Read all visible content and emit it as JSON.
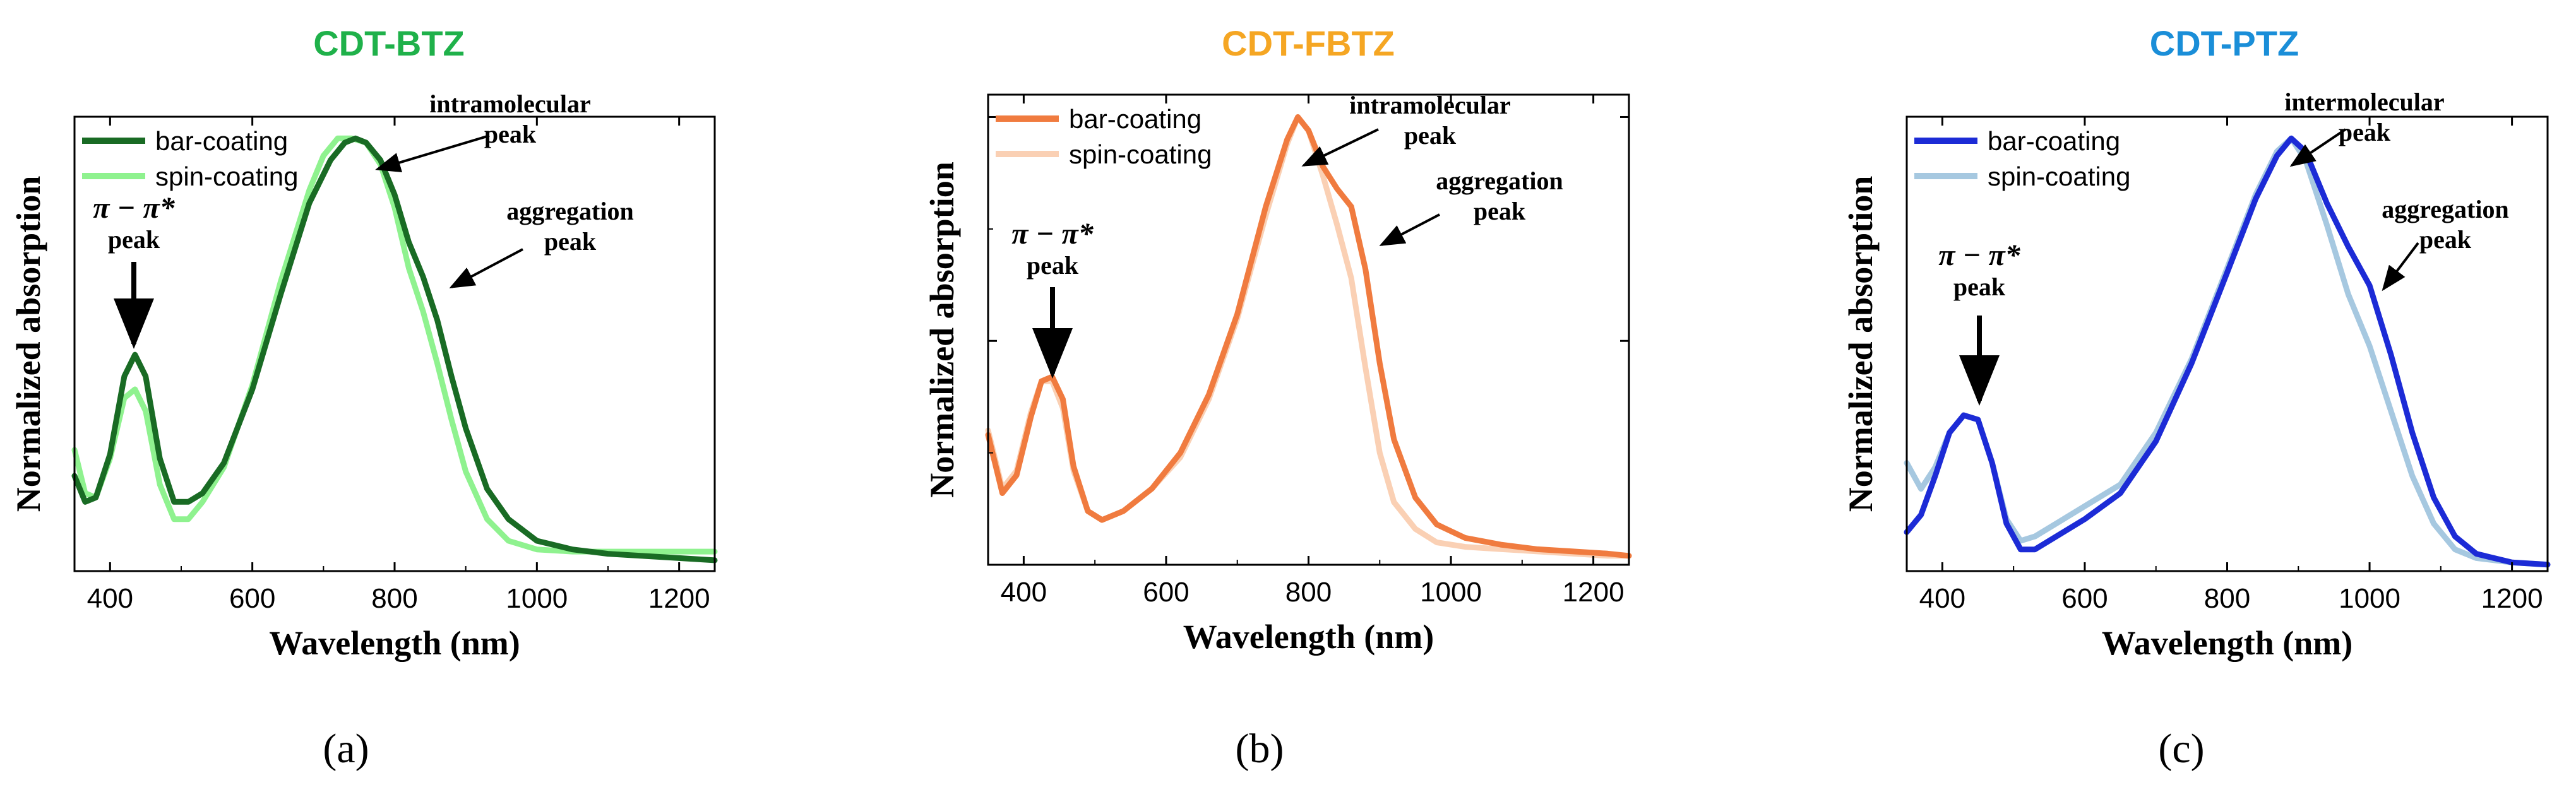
{
  "chart_data": [
    {
      "type": "line",
      "title": "CDT-BTZ",
      "title_color": "#1fb14a",
      "xlabel": "Wavelength (nm)",
      "ylabel": "Normalized absorption",
      "xlim": [
        350,
        1250
      ],
      "ylim": [
        0,
        1.05
      ],
      "xticks": [
        400,
        600,
        800,
        1000,
        1200
      ],
      "show_y_tick_marks": false,
      "legend": "top-left",
      "series": [
        {
          "name": "bar-coating",
          "color": "#196b24",
          "x": [
            350,
            365,
            380,
            400,
            420,
            435,
            450,
            470,
            490,
            510,
            530,
            560,
            600,
            640,
            680,
            710,
            730,
            745,
            760,
            780,
            800,
            820,
            840,
            860,
            880,
            900,
            930,
            960,
            1000,
            1050,
            1100,
            1150,
            1200,
            1250
          ],
          "y": [
            0.22,
            0.16,
            0.17,
            0.27,
            0.45,
            0.5,
            0.45,
            0.26,
            0.16,
            0.16,
            0.18,
            0.25,
            0.42,
            0.64,
            0.85,
            0.95,
            0.99,
            1.0,
            0.99,
            0.95,
            0.87,
            0.76,
            0.68,
            0.58,
            0.45,
            0.33,
            0.19,
            0.12,
            0.07,
            0.05,
            0.04,
            0.035,
            0.03,
            0.025
          ]
        },
        {
          "name": "spin-coating",
          "color": "#8ff28f",
          "x": [
            350,
            365,
            380,
            400,
            420,
            435,
            450,
            470,
            490,
            510,
            530,
            560,
            600,
            640,
            680,
            700,
            720,
            740,
            760,
            780,
            800,
            820,
            840,
            860,
            880,
            900,
            930,
            960,
            1000,
            1050,
            1100,
            1150,
            1200,
            1250
          ],
          "y": [
            0.28,
            0.18,
            0.17,
            0.26,
            0.4,
            0.42,
            0.37,
            0.2,
            0.12,
            0.12,
            0.16,
            0.24,
            0.43,
            0.67,
            0.88,
            0.96,
            1.0,
            1.0,
            0.99,
            0.94,
            0.84,
            0.7,
            0.6,
            0.48,
            0.35,
            0.23,
            0.12,
            0.07,
            0.05,
            0.045,
            0.045,
            0.045,
            0.045,
            0.045
          ]
        }
      ],
      "annotations": [
        {
          "text": "π − π*",
          "line2": "peak"
        },
        {
          "text": "intramolecular",
          "line2": "peak"
        },
        {
          "text": "aggregation",
          "line2": "peak"
        }
      ],
      "sublabel": "(a)"
    },
    {
      "type": "line",
      "title": "CDT-FBTZ",
      "title_color": "#f5a623",
      "xlabel": "Wavelength (nm)",
      "ylabel": "Normalized absorption",
      "xlim": [
        350,
        1250
      ],
      "ylim": [
        0,
        1.05
      ],
      "xticks": [
        400,
        600,
        800,
        1000,
        1200
      ],
      "show_y_tick_marks": true,
      "legend": "top-left",
      "series": [
        {
          "name": "bar-coating",
          "color": "#f07b3f",
          "x": [
            350,
            370,
            390,
            410,
            425,
            440,
            455,
            470,
            490,
            510,
            540,
            580,
            620,
            660,
            700,
            740,
            770,
            785,
            800,
            820,
            840,
            860,
            880,
            900,
            920,
            950,
            980,
            1020,
            1070,
            1120,
            1170,
            1220,
            1250
          ],
          "y": [
            0.29,
            0.16,
            0.2,
            0.33,
            0.41,
            0.42,
            0.37,
            0.22,
            0.12,
            0.1,
            0.12,
            0.17,
            0.25,
            0.38,
            0.56,
            0.8,
            0.95,
            1.0,
            0.97,
            0.89,
            0.84,
            0.8,
            0.66,
            0.45,
            0.28,
            0.15,
            0.09,
            0.06,
            0.045,
            0.035,
            0.03,
            0.025,
            0.02
          ]
        },
        {
          "name": "spin-coating",
          "color": "#fad0b4",
          "x": [
            350,
            370,
            390,
            410,
            425,
            440,
            455,
            470,
            490,
            510,
            540,
            580,
            620,
            660,
            700,
            740,
            770,
            785,
            800,
            820,
            840,
            860,
            880,
            900,
            920,
            950,
            980,
            1020,
            1070,
            1120,
            1170,
            1220,
            1250
          ],
          "y": [
            0.3,
            0.17,
            0.21,
            0.34,
            0.41,
            0.41,
            0.35,
            0.21,
            0.12,
            0.1,
            0.12,
            0.17,
            0.24,
            0.37,
            0.55,
            0.78,
            0.94,
            1.0,
            0.97,
            0.87,
            0.76,
            0.64,
            0.44,
            0.25,
            0.14,
            0.08,
            0.05,
            0.04,
            0.035,
            0.03,
            0.025,
            0.02,
            0.02
          ]
        }
      ],
      "annotations": [
        {
          "text": "π − π*",
          "line2": "peak"
        },
        {
          "text": "intramolecular",
          "line2": "peak"
        },
        {
          "text": "aggregation",
          "line2": "peak"
        }
      ],
      "sublabel": "(b)"
    },
    {
      "type": "line",
      "title": "CDT-PTZ",
      "title_color": "#1a8ed8",
      "xlabel": "Wavelength (nm)",
      "ylabel": "Normalized absorption",
      "xlim": [
        350,
        1250
      ],
      "ylim": [
        0,
        1.05
      ],
      "xticks": [
        400,
        600,
        800,
        1000,
        1200
      ],
      "show_y_tick_marks": false,
      "legend": "top-left",
      "series": [
        {
          "name": "bar-coating",
          "color": "#1c2bd6",
          "x": [
            350,
            370,
            390,
            410,
            430,
            450,
            470,
            490,
            510,
            530,
            560,
            600,
            650,
            700,
            750,
            800,
            840,
            870,
            890,
            910,
            940,
            970,
            1000,
            1030,
            1060,
            1090,
            1120,
            1150,
            1200,
            1250
          ],
          "y": [
            0.09,
            0.13,
            0.22,
            0.32,
            0.36,
            0.35,
            0.25,
            0.11,
            0.05,
            0.05,
            0.08,
            0.12,
            0.18,
            0.3,
            0.48,
            0.69,
            0.86,
            0.96,
            1.0,
            0.97,
            0.85,
            0.75,
            0.66,
            0.5,
            0.32,
            0.17,
            0.08,
            0.04,
            0.02,
            0.015
          ]
        },
        {
          "name": "spin-coating",
          "color": "#a6c8e0",
          "x": [
            350,
            370,
            390,
            410,
            430,
            450,
            470,
            490,
            510,
            530,
            560,
            600,
            650,
            700,
            750,
            800,
            840,
            870,
            890,
            910,
            940,
            970,
            1000,
            1030,
            1060,
            1090,
            1120,
            1150,
            1200,
            1250
          ],
          "y": [
            0.25,
            0.19,
            0.24,
            0.32,
            0.36,
            0.35,
            0.25,
            0.12,
            0.07,
            0.08,
            0.11,
            0.15,
            0.2,
            0.32,
            0.49,
            0.7,
            0.87,
            0.97,
            1.0,
            0.95,
            0.8,
            0.64,
            0.52,
            0.37,
            0.22,
            0.11,
            0.05,
            0.03,
            0.02,
            0.015
          ]
        }
      ],
      "annotations": [
        {
          "text": "π − π*",
          "line2": "peak"
        },
        {
          "text": "intermolecular",
          "line2": "peak"
        },
        {
          "text": "aggregation",
          "line2": "peak"
        }
      ],
      "sublabel": "(c)"
    }
  ]
}
